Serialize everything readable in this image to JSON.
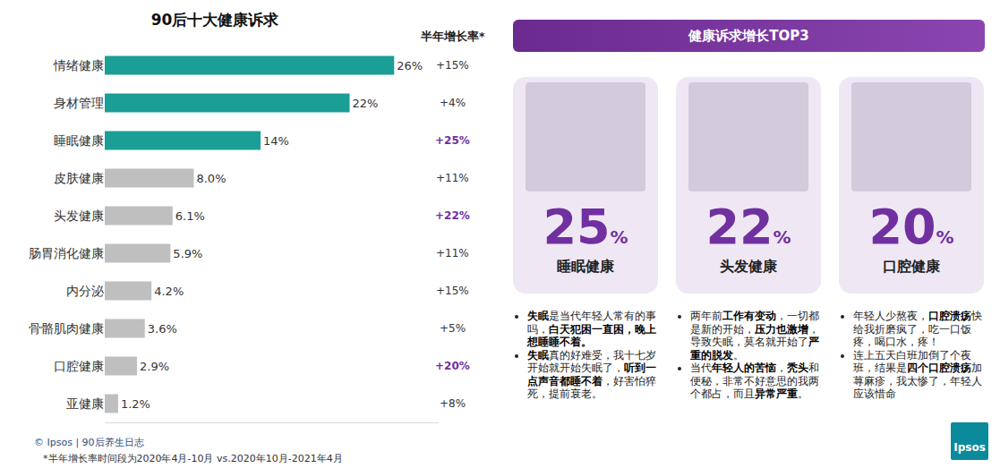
{
  "chart_data": {
    "type": "bar",
    "orientation": "horizontal",
    "title": "90后十大健康诉求",
    "categories": [
      "情绪健康",
      "身材管理",
      "睡眠健康",
      "皮肤健康",
      "头发健康",
      "肠胃消化健康",
      "内分泌",
      "骨骼肌肉健康",
      "口腔健康",
      "亚健康"
    ],
    "values": [
      26,
      22,
      14,
      8.0,
      6.1,
      5.9,
      4.2,
      3.6,
      2.9,
      1.2
    ],
    "value_labels": [
      "26%",
      "22%",
      "14%",
      "8.0%",
      "6.1%",
      "5.9%",
      "4.2%",
      "3.6%",
      "2.9%",
      "1.2%"
    ],
    "colors": [
      "#1a9e96",
      "#1a9e96",
      "#1a9e96",
      "#bfbfbf",
      "#bfbfbf",
      "#bfbfbf",
      "#bfbfbf",
      "#bfbfbf",
      "#bfbfbf",
      "#bfbfbf"
    ],
    "data_labels": true,
    "tick_labels": "y",
    "grid": false,
    "xlim": [
      0,
      30
    ],
    "growth": {
      "title": "半年增长率*",
      "values": [
        15,
        4,
        25,
        11,
        22,
        11,
        15,
        5,
        20,
        8
      ],
      "value_labels": [
        "+15%",
        "+4%",
        "+25%",
        "+11%",
        "+22%",
        "+11%",
        "+15%",
        "+5%",
        "+20%",
        "+8%"
      ],
      "colors": [
        "#333333",
        "#333333",
        "#7030a0",
        "#333333",
        "#7030a0",
        "#333333",
        "#333333",
        "#333333",
        "#7030a0",
        "#333333"
      ]
    }
  },
  "panel": {
    "title": "健康诉求增长TOP3",
    "cards": [
      {
        "value": 25,
        "unit": "%",
        "name": "睡眠健康",
        "bullets": [
          [
            {
              "text": "失眠",
              "bold": true
            },
            {
              "text": "是当代年轻人常有的事吗，",
              "bold": false
            },
            {
              "text": "白天犯困一直困，晚上想睡睡不着。",
              "bold": true
            }
          ],
          [
            {
              "text": "失眠",
              "bold": true
            },
            {
              "text": "真的好难受，我十七岁开始就开始失眠了，",
              "bold": false
            },
            {
              "text": "听到一点声音都睡不着",
              "bold": true
            },
            {
              "text": "，好害怕猝死，提前衰老。",
              "bold": false
            }
          ]
        ]
      },
      {
        "value": 22,
        "unit": "%",
        "name": "头发健康",
        "bullets": [
          [
            {
              "text": "两年前",
              "bold": false
            },
            {
              "text": "工作有变动",
              "bold": true
            },
            {
              "text": "，一切都是新的开始，",
              "bold": false
            },
            {
              "text": "压力也激增",
              "bold": true
            },
            {
              "text": "，导致失眠，莫名就开始了",
              "bold": false
            },
            {
              "text": "严重的脱发",
              "bold": true
            },
            {
              "text": "。",
              "bold": false
            }
          ],
          [
            {
              "text": "当代",
              "bold": false
            },
            {
              "text": "年轻人的苦恼",
              "bold": true
            },
            {
              "text": "，",
              "bold": false
            },
            {
              "text": "秃头",
              "bold": true
            },
            {
              "text": "和便秘，非常不好意思的我两个都占，而且",
              "bold": false
            },
            {
              "text": "异常严重",
              "bold": true
            },
            {
              "text": "。",
              "bold": false
            }
          ]
        ]
      },
      {
        "value": 20,
        "unit": "%",
        "name": "口腔健康",
        "bullets": [
          [
            {
              "text": "年轻人少熬夜，",
              "bold": false
            },
            {
              "text": "口腔溃疡",
              "bold": true
            },
            {
              "text": "快给我折磨疯了，吃一口饭疼，喝口水，疼！",
              "bold": false
            }
          ],
          [
            {
              "text": "连上五天白班加倒了个夜班，结果是",
              "bold": false
            },
            {
              "text": "四个口腔溃疡",
              "bold": true
            },
            {
              "text": "加荨麻疹，我太惨了，年轻人应该惜命",
              "bold": false
            }
          ]
        ]
      }
    ]
  },
  "footer": {
    "source": "© Ipsos | 90后养生日志",
    "note": "*半年增长率时间段为2020年4月-10月 vs.2020年10月-2021年4月"
  },
  "logo": "Ipsos"
}
